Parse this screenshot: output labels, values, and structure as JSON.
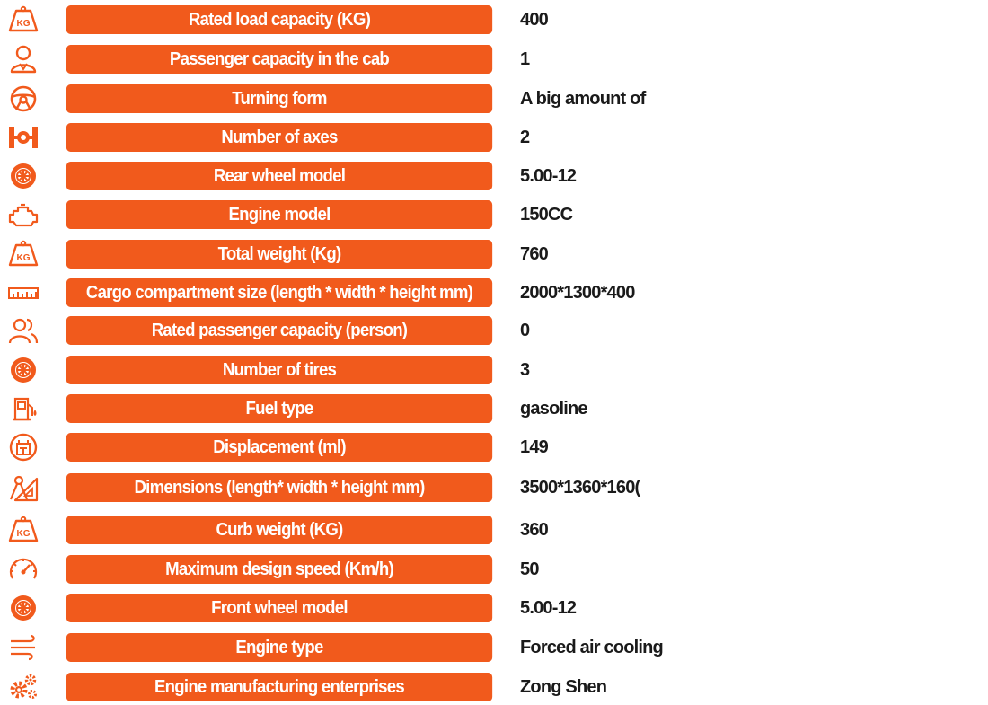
{
  "accent_color": "#f15a1c",
  "rows": [
    {
      "icon": "weight-kg-icon",
      "label": "Rated load capacity (KG)",
      "value": "400"
    },
    {
      "icon": "passenger-icon",
      "label": "Passenger capacity in the cab",
      "value": "1"
    },
    {
      "icon": "steering-wheel-icon",
      "label": "Turning form",
      "value": "A big amount of"
    },
    {
      "icon": "axle-icon",
      "label": "Number of axes",
      "value": "2"
    },
    {
      "icon": "wheel-icon",
      "label": "Rear wheel model",
      "value": "5.00-12"
    },
    {
      "icon": "engine-icon",
      "label": "Engine model",
      "value": "150CC"
    },
    {
      "icon": "weight-kg-icon",
      "label": "Total weight (Kg)",
      "value": "760"
    },
    {
      "icon": "ruler-icon",
      "label": "Cargo compartment size (length * width * height mm)",
      "value": "2000*1300*400"
    },
    {
      "icon": "persons-icon",
      "label": "Rated passenger capacity (person)",
      "value": "0"
    },
    {
      "icon": "wheel-icon",
      "label": "Number of tires",
      "value": "3"
    },
    {
      "icon": "fuel-pump-icon",
      "label": "Fuel type",
      "value": "gasoline"
    },
    {
      "icon": "displacement-icon",
      "label": "Displacement (ml)",
      "value": "149"
    },
    {
      "icon": "measure-tools-icon",
      "label": "Dimensions (length* width * height mm)",
      "value": "3500*1360*160("
    },
    {
      "icon": "weight-kg-icon",
      "label": "Curb weight (KG)",
      "value": "360"
    },
    {
      "icon": "speedometer-icon",
      "label": "Maximum design speed (Km/h)",
      "value": "50"
    },
    {
      "icon": "wheel-icon",
      "label": "Front wheel model",
      "value": "5.00-12"
    },
    {
      "icon": "air-cooling-icon",
      "label": "Engine type",
      "value": "Forced air cooling"
    },
    {
      "icon": "gears-icon",
      "label": "Engine manufacturing enterprises",
      "value": "Zong Shen"
    }
  ],
  "kg_badge_text": "KG"
}
